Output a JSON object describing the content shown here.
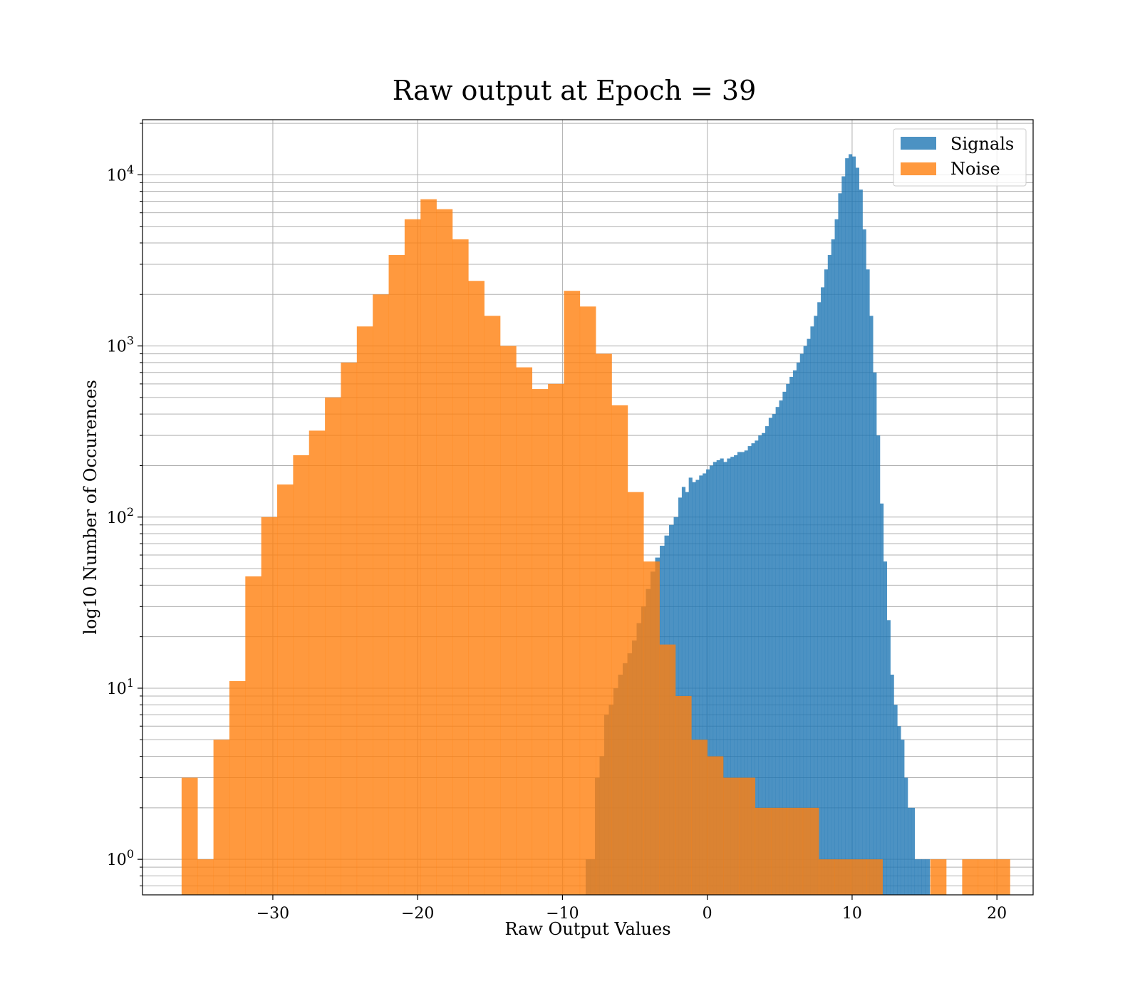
{
  "chart_data": {
    "type": "bar",
    "title": "Raw output at Epoch = 39",
    "xlabel": "Raw Output Values",
    "ylabel": "log10 Number of Occurences",
    "yscale": "log",
    "xlim": [
      -39,
      22.5
    ],
    "ylim": [
      0.62,
      21000
    ],
    "x_ticks": [
      -30,
      -20,
      -10,
      0,
      10,
      20
    ],
    "x_tick_labels": [
      "−30",
      "−20",
      "−10",
      "0",
      "10",
      "20"
    ],
    "y_ticks": [
      {
        "value": 1,
        "base": "10",
        "exp": "0"
      },
      {
        "value": 10,
        "base": "10",
        "exp": "1"
      },
      {
        "value": 100,
        "base": "10",
        "exp": "2"
      },
      {
        "value": 1000,
        "base": "10",
        "exp": "3"
      },
      {
        "value": 10000,
        "base": "10",
        "exp": "4"
      }
    ],
    "grid": true,
    "legend_position": "top-right",
    "colors": {
      "signals": "#1f77b4",
      "noise": "#ff7f0e"
    },
    "series": [
      {
        "name": "Signals",
        "color": "#1f77b4",
        "opacity": 0.8,
        "x": [
          -8.4,
          -8.08,
          -7.76,
          -7.44,
          -7.12,
          -6.8,
          -6.48,
          -6.16,
          -5.84,
          -5.52,
          -5.2,
          -4.88,
          -4.56,
          -4.24,
          -3.92,
          -3.6,
          -3.28,
          -2.96,
          -2.64,
          -2.32,
          -2.0,
          -1.76,
          -1.52,
          -1.28,
          -1.04,
          -0.8,
          -0.56,
          -0.32,
          -0.08,
          0.16,
          0.4,
          0.64,
          0.88,
          1.12,
          1.36,
          1.6,
          1.84,
          2.08,
          2.32,
          2.56,
          2.8,
          3.04,
          3.28,
          3.52,
          3.76,
          4.0,
          4.24,
          4.48,
          4.72,
          4.96,
          5.2,
          5.44,
          5.68,
          5.92,
          6.16,
          6.4,
          6.64,
          6.88,
          7.12,
          7.36,
          7.6,
          7.84,
          8.08,
          8.32,
          8.56,
          8.8,
          9.04,
          9.28,
          9.52,
          9.76,
          10.0,
          10.24,
          10.48,
          10.72,
          10.96,
          11.2,
          11.44,
          11.68,
          11.92,
          12.16,
          12.4,
          12.64,
          12.88,
          13.12,
          13.36,
          13.6,
          13.84,
          14.08,
          14.32,
          14.56,
          14.8,
          15.04
        ],
        "values": [
          1,
          1,
          3,
          4,
          7,
          8,
          10,
          12,
          14,
          16,
          19,
          24,
          30,
          38,
          48,
          58,
          68,
          78,
          90,
          100,
          130,
          150,
          140,
          170,
          160,
          165,
          175,
          180,
          190,
          200,
          210,
          215,
          220,
          210,
          220,
          225,
          230,
          240,
          240,
          245,
          260,
          270,
          280,
          300,
          310,
          340,
          380,
          400,
          440,
          480,
          540,
          600,
          660,
          720,
          800,
          900,
          1000,
          1100,
          1300,
          1500,
          1800,
          2200,
          2800,
          3400,
          4200,
          5500,
          7800,
          9800,
          12500,
          13200,
          12800,
          11000,
          8200,
          4800,
          2800,
          1500,
          700,
          300,
          120,
          55,
          25,
          12,
          8,
          6,
          5,
          3,
          2,
          2,
          1,
          1,
          1,
          1
        ]
      },
      {
        "name": "Noise",
        "color": "#ff7f0e",
        "opacity": 0.8,
        "x": [
          -36.3,
          -35.2,
          -34.1,
          -33.0,
          -31.9,
          -30.8,
          -29.7,
          -28.6,
          -27.5,
          -26.4,
          -25.3,
          -24.2,
          -23.1,
          -22.0,
          -20.9,
          -19.8,
          -18.7,
          -17.6,
          -16.5,
          -15.4,
          -14.3,
          -13.2,
          -12.1,
          -11.0,
          -9.9,
          -8.8,
          -7.7,
          -6.6,
          -5.5,
          -4.4,
          -3.3,
          -2.2,
          -1.1,
          0.0,
          1.1,
          2.2,
          3.3,
          4.4,
          5.5,
          6.6,
          7.7,
          8.8,
          9.9,
          11.0,
          12.1,
          13.2,
          14.3,
          15.4,
          16.5,
          17.6,
          18.7,
          19.8
        ],
        "values": [
          3,
          1,
          5,
          11,
          45,
          100,
          155,
          230,
          320,
          500,
          800,
          1300,
          2000,
          3400,
          5500,
          7200,
          6300,
          4200,
          2400,
          1500,
          1000,
          750,
          560,
          600,
          2100,
          1700,
          900,
          450,
          140,
          55,
          18,
          9,
          5,
          4,
          3,
          3,
          2,
          2,
          2,
          2,
          1,
          1,
          1,
          1,
          0,
          0,
          0,
          1,
          0,
          1,
          1,
          1
        ]
      }
    ]
  }
}
